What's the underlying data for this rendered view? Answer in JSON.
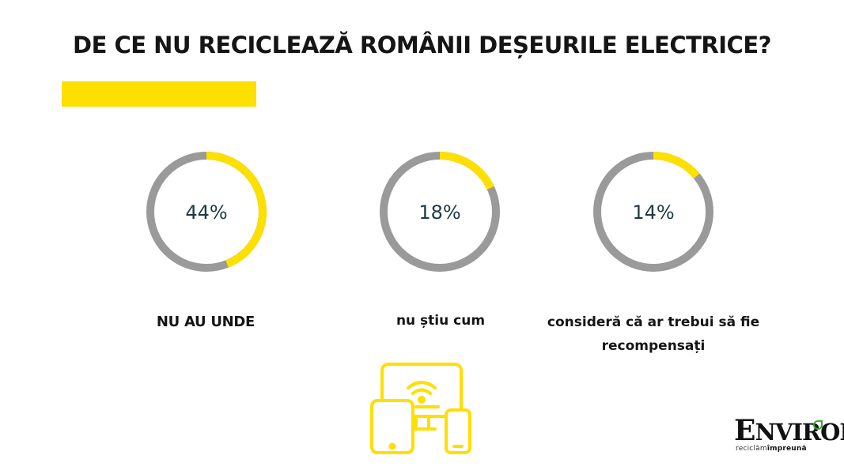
{
  "title": "DE CE NU RECICLEAZĂ ROMÂNII DEȘEURILE ELECTRICE?",
  "colors": {
    "accent": "#fddf00",
    "track": "#9a9a9a",
    "text": "#151515",
    "value_text": "#1f3a44",
    "logo_green": "#3ea33b"
  },
  "chart_data": [
    {
      "type": "pie",
      "values": [
        44
      ],
      "value_label": "44%",
      "category": "NU AU UNDE"
    },
    {
      "type": "pie",
      "values": [
        18
      ],
      "value_label": "18%",
      "category": "nu știu cum"
    },
    {
      "type": "pie",
      "values": [
        14
      ],
      "value_label": "14%",
      "category": "consideră că ar trebui să fie recompensați"
    }
  ],
  "labels": {
    "first": "NU AU UNDE",
    "second": "nu știu cum",
    "third_line1": "consideră că ar trebui să fie",
    "third_line2": "recompensați"
  },
  "icon": {
    "name": "electronic-devices-icon"
  },
  "logo": {
    "name_first": "E",
    "name_rest": "NVIRON",
    "tagline_a": "reciclăm",
    "tagline_b": "împreună"
  }
}
